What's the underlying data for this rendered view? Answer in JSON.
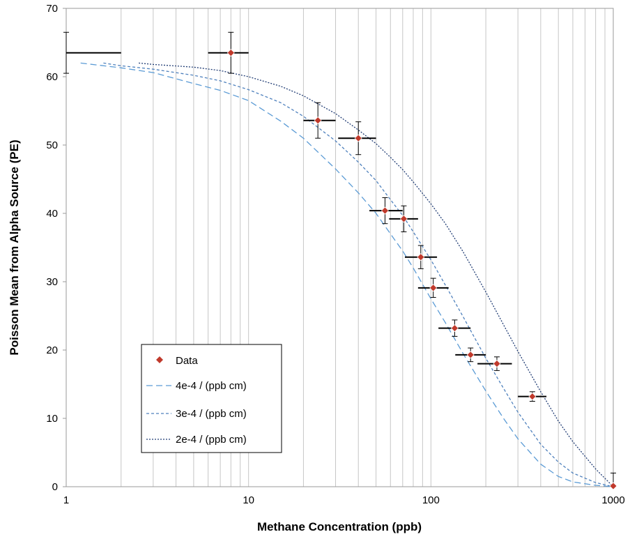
{
  "chart_data": {
    "type": "scatter",
    "title": "",
    "xlabel": "Methane Concentration (ppb)",
    "ylabel": "Poisson Mean from Alpha Source (PE)",
    "xscale": "log",
    "xlim": [
      1,
      1000
    ],
    "ylim": [
      0,
      70
    ],
    "x_ticks": [
      1,
      10,
      100,
      1000
    ],
    "x_tick_labels": [
      "1",
      "10",
      "100",
      "1000"
    ],
    "y_ticks": [
      0,
      10,
      20,
      30,
      40,
      50,
      60,
      70
    ],
    "y_tick_labels": [
      "0",
      "10",
      "20",
      "30",
      "40",
      "50",
      "60",
      "70"
    ],
    "grid": "vertical log minor gridlines",
    "legend_position": "lower-left",
    "data_series": {
      "name": "Data",
      "color": "#c0392b",
      "points": [
        {
          "x": 1.0,
          "y": 63.5,
          "x_lo": 1.0,
          "x_hi": 2.0,
          "y_err": 3.0
        },
        {
          "x": 8.0,
          "y": 63.5,
          "x_lo": 6.0,
          "x_hi": 10.0,
          "y_err": 3.0
        },
        {
          "x": 24,
          "y": 53.6,
          "x_lo": 20,
          "x_hi": 30,
          "y_err": 2.6
        },
        {
          "x": 40,
          "y": 51.0,
          "x_lo": 31,
          "x_hi": 50,
          "y_err": 2.4
        },
        {
          "x": 56,
          "y": 40.4,
          "x_lo": 46,
          "x_hi": 70,
          "y_err": 1.9
        },
        {
          "x": 71,
          "y": 39.2,
          "x_lo": 59,
          "x_hi": 85,
          "y_err": 1.9
        },
        {
          "x": 88,
          "y": 33.6,
          "x_lo": 72,
          "x_hi": 108,
          "y_err": 1.7
        },
        {
          "x": 103,
          "y": 29.1,
          "x_lo": 85,
          "x_hi": 125,
          "y_err": 1.4
        },
        {
          "x": 135,
          "y": 23.2,
          "x_lo": 110,
          "x_hi": 165,
          "y_err": 1.2
        },
        {
          "x": 165,
          "y": 19.3,
          "x_lo": 136,
          "x_hi": 200,
          "y_err": 1.0
        },
        {
          "x": 230,
          "y": 18.0,
          "x_lo": 180,
          "x_hi": 278,
          "y_err": 1.0
        },
        {
          "x": 360,
          "y": 13.2,
          "x_lo": 300,
          "x_hi": 430,
          "y_err": 0.7
        },
        {
          "x": 1000,
          "y": 0.1,
          "x_lo": 1000,
          "x_hi": 1000,
          "y_err": 1.9
        }
      ]
    },
    "model_series": [
      {
        "name": "4e-4 / (ppb cm)",
        "color": "#5b9bd5",
        "dash": "long",
        "points": [
          [
            1.2,
            62.0
          ],
          [
            2,
            61.3
          ],
          [
            3,
            60.6
          ],
          [
            5,
            59.0
          ],
          [
            7,
            58.0
          ],
          [
            10,
            56.5
          ],
          [
            15,
            53.5
          ],
          [
            20,
            51.0
          ],
          [
            30,
            46.5
          ],
          [
            40,
            43.0
          ],
          [
            50,
            40.0
          ],
          [
            60,
            37.0
          ],
          [
            70,
            34.5
          ],
          [
            80,
            32.0
          ],
          [
            100,
            27.5
          ],
          [
            120,
            24.0
          ],
          [
            150,
            19.5
          ],
          [
            200,
            14.0
          ],
          [
            250,
            10.0
          ],
          [
            300,
            7.0
          ],
          [
            400,
            3.3
          ],
          [
            500,
            1.5
          ],
          [
            600,
            0.7
          ],
          [
            800,
            0.2
          ],
          [
            1000,
            0.0
          ]
        ]
      },
      {
        "name": "3e-4 / (ppb cm)",
        "color": "#4f81bd",
        "dash": "short",
        "points": [
          [
            1.6,
            62.0
          ],
          [
            2,
            61.6
          ],
          [
            3,
            61.1
          ],
          [
            5,
            60.2
          ],
          [
            7,
            59.4
          ],
          [
            10,
            58.1
          ],
          [
            15,
            56.2
          ],
          [
            20,
            54.2
          ],
          [
            30,
            50.6
          ],
          [
            40,
            47.5
          ],
          [
            50,
            44.8
          ],
          [
            60,
            42.0
          ],
          [
            70,
            39.7
          ],
          [
            80,
            37.3
          ],
          [
            100,
            33.2
          ],
          [
            120,
            29.5
          ],
          [
            150,
            24.9
          ],
          [
            200,
            18.8
          ],
          [
            250,
            14.4
          ],
          [
            300,
            10.9
          ],
          [
            400,
            6.2
          ],
          [
            500,
            3.6
          ],
          [
            600,
            2.0
          ],
          [
            800,
            0.6
          ],
          [
            1000,
            0.0
          ]
        ]
      },
      {
        "name": "2e-4 / (ppb cm)",
        "color": "#1f3b73",
        "dash": "dot",
        "points": [
          [
            2.5,
            62.0
          ],
          [
            3,
            61.8
          ],
          [
            5,
            61.4
          ],
          [
            7,
            60.9
          ],
          [
            10,
            60.0
          ],
          [
            15,
            58.6
          ],
          [
            20,
            57.2
          ],
          [
            30,
            54.6
          ],
          [
            40,
            52.2
          ],
          [
            50,
            50.2
          ],
          [
            60,
            48.2
          ],
          [
            70,
            46.4
          ],
          [
            80,
            44.6
          ],
          [
            100,
            41.4
          ],
          [
            120,
            38.5
          ],
          [
            150,
            34.4
          ],
          [
            200,
            28.5
          ],
          [
            250,
            23.7
          ],
          [
            300,
            19.8
          ],
          [
            400,
            13.9
          ],
          [
            500,
            9.6
          ],
          [
            600,
            6.6
          ],
          [
            800,
            2.6
          ],
          [
            1000,
            0.0
          ]
        ]
      }
    ]
  },
  "legend": {
    "items": [
      {
        "label": "Data"
      },
      {
        "label": "4e-4 / (ppb cm)"
      },
      {
        "label": "3e-4 / (ppb cm)"
      },
      {
        "label": "2e-4 / (ppb cm)"
      }
    ]
  }
}
